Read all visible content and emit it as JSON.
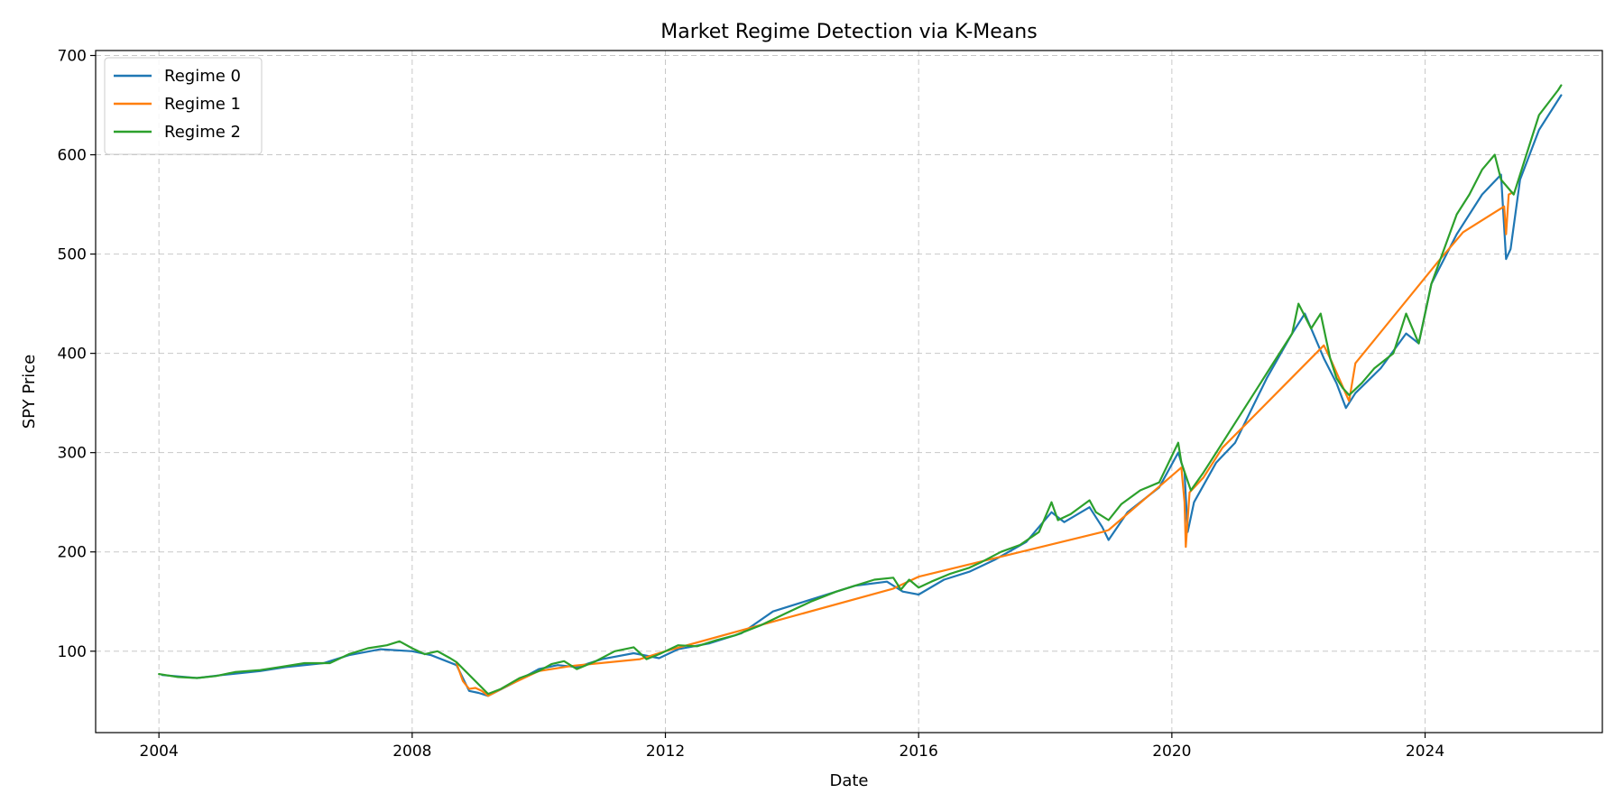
{
  "chart_data": {
    "type": "line",
    "title": "Market Regime Detection via K-Means",
    "xlabel": "Date",
    "ylabel": "SPY Price",
    "x_ticks": [
      "2004",
      "2008",
      "2012",
      "2016",
      "2020",
      "2024"
    ],
    "y_ticks": [
      100,
      200,
      300,
      400,
      500,
      600,
      700
    ],
    "xlim": [
      2003.0,
      2026.8
    ],
    "ylim": [
      18,
      705
    ],
    "grid": true,
    "grid_style": "dashed",
    "legend_position": "top-left",
    "series": [
      {
        "name": "Regime 0",
        "color": "#1f77b4",
        "points": [
          [
            2004.05,
            76
          ],
          [
            2004.6,
            73
          ],
          [
            2005.0,
            76
          ],
          [
            2005.6,
            80
          ],
          [
            2006.0,
            84
          ],
          [
            2006.6,
            88
          ],
          [
            2007.0,
            96
          ],
          [
            2007.5,
            102
          ],
          [
            2008.0,
            100
          ],
          [
            2008.3,
            96
          ],
          [
            2008.7,
            86
          ],
          [
            2008.9,
            60
          ],
          [
            2009.05,
            58
          ],
          [
            2009.2,
            55
          ],
          [
            2009.6,
            68
          ],
          [
            2010.0,
            82
          ],
          [
            2010.3,
            86
          ],
          [
            2010.6,
            84
          ],
          [
            2011.0,
            92
          ],
          [
            2011.5,
            98
          ],
          [
            2011.9,
            93
          ],
          [
            2012.2,
            102
          ],
          [
            2012.7,
            108
          ],
          [
            2013.2,
            118
          ],
          [
            2013.7,
            140
          ],
          [
            2014.2,
            150
          ],
          [
            2014.7,
            160
          ],
          [
            2015.0,
            166
          ],
          [
            2015.5,
            170
          ],
          [
            2015.75,
            160
          ],
          [
            2016.0,
            157
          ],
          [
            2016.4,
            172
          ],
          [
            2016.8,
            180
          ],
          [
            2017.2,
            192
          ],
          [
            2017.7,
            210
          ],
          [
            2018.1,
            240
          ],
          [
            2018.3,
            230
          ],
          [
            2018.7,
            245
          ],
          [
            2018.9,
            225
          ],
          [
            2019.0,
            212
          ],
          [
            2019.3,
            240
          ],
          [
            2019.8,
            265
          ],
          [
            2020.1,
            300
          ],
          [
            2020.2,
            280
          ],
          [
            2020.25,
            220
          ],
          [
            2020.35,
            250
          ],
          [
            2020.7,
            290
          ],
          [
            2021.0,
            310
          ],
          [
            2021.5,
            375
          ],
          [
            2021.9,
            420
          ],
          [
            2022.1,
            440
          ],
          [
            2022.4,
            395
          ],
          [
            2022.6,
            370
          ],
          [
            2022.75,
            345
          ],
          [
            2022.9,
            360
          ],
          [
            2023.3,
            385
          ],
          [
            2023.7,
            420
          ],
          [
            2023.9,
            410
          ],
          [
            2024.1,
            470
          ],
          [
            2024.5,
            520
          ],
          [
            2024.9,
            560
          ],
          [
            2025.2,
            580
          ],
          [
            2025.28,
            495
          ],
          [
            2025.35,
            505
          ],
          [
            2025.5,
            575
          ],
          [
            2025.8,
            625
          ],
          [
            2026.15,
            660
          ]
        ]
      },
      {
        "name": "Regime 1",
        "color": "#ff7f0e",
        "points": [
          [
            2008.7,
            88
          ],
          [
            2008.8,
            70
          ],
          [
            2008.9,
            62
          ],
          [
            2009.0,
            63
          ],
          [
            2009.1,
            60
          ],
          [
            2009.2,
            55
          ],
          [
            2009.5,
            65
          ],
          [
            2010.0,
            80
          ],
          [
            2010.5,
            85
          ],
          [
            2011.6,
            92
          ],
          [
            2012.0,
            100
          ],
          [
            2015.6,
            163
          ],
          [
            2016.0,
            175
          ],
          [
            2018.9,
            220
          ],
          [
            2019.0,
            222
          ],
          [
            2020.15,
            285
          ],
          [
            2020.2,
            250
          ],
          [
            2020.22,
            205
          ],
          [
            2020.28,
            260
          ],
          [
            2020.5,
            275
          ],
          [
            2020.8,
            305
          ],
          [
            2022.4,
            408
          ],
          [
            2022.5,
            395
          ],
          [
            2022.8,
            352
          ],
          [
            2022.9,
            390
          ],
          [
            2024.2,
            492
          ],
          [
            2024.6,
            522
          ],
          [
            2025.25,
            548
          ],
          [
            2025.28,
            520
          ],
          [
            2025.32,
            560
          ],
          [
            2025.38,
            562
          ]
        ]
      },
      {
        "name": "Regime 2",
        "color": "#2ca02c",
        "points": [
          [
            2004.0,
            77
          ],
          [
            2004.3,
            74
          ],
          [
            2004.6,
            73
          ],
          [
            2004.9,
            75
          ],
          [
            2005.2,
            79
          ],
          [
            2005.6,
            81
          ],
          [
            2005.9,
            84
          ],
          [
            2006.3,
            88
          ],
          [
            2006.7,
            88
          ],
          [
            2007.0,
            97
          ],
          [
            2007.3,
            103
          ],
          [
            2007.6,
            106
          ],
          [
            2007.8,
            110
          ],
          [
            2008.0,
            103
          ],
          [
            2008.2,
            97
          ],
          [
            2008.4,
            100
          ],
          [
            2008.6,
            93
          ],
          [
            2008.7,
            89
          ],
          [
            2009.2,
            57
          ],
          [
            2009.4,
            62
          ],
          [
            2009.7,
            73
          ],
          [
            2010.0,
            80
          ],
          [
            2010.2,
            87
          ],
          [
            2010.4,
            90
          ],
          [
            2010.6,
            82
          ],
          [
            2010.9,
            90
          ],
          [
            2011.2,
            100
          ],
          [
            2011.5,
            104
          ],
          [
            2011.7,
            92
          ],
          [
            2011.9,
            97
          ],
          [
            2012.2,
            106
          ],
          [
            2012.5,
            105
          ],
          [
            2012.8,
            111
          ],
          [
            2013.1,
            116
          ],
          [
            2013.5,
            126
          ],
          [
            2013.9,
            138
          ],
          [
            2014.3,
            150
          ],
          [
            2014.7,
            160
          ],
          [
            2015.0,
            166
          ],
          [
            2015.3,
            172
          ],
          [
            2015.6,
            174
          ],
          [
            2015.72,
            162
          ],
          [
            2015.85,
            172
          ],
          [
            2016.0,
            164
          ],
          [
            2016.2,
            170
          ],
          [
            2016.5,
            178
          ],
          [
            2016.8,
            184
          ],
          [
            2017.0,
            190
          ],
          [
            2017.3,
            200
          ],
          [
            2017.6,
            207
          ],
          [
            2017.9,
            220
          ],
          [
            2018.1,
            250
          ],
          [
            2018.2,
            232
          ],
          [
            2018.4,
            238
          ],
          [
            2018.7,
            252
          ],
          [
            2018.8,
            240
          ],
          [
            2019.0,
            232
          ],
          [
            2019.2,
            248
          ],
          [
            2019.5,
            262
          ],
          [
            2019.8,
            270
          ],
          [
            2020.1,
            310
          ],
          [
            2020.15,
            290
          ],
          [
            2020.3,
            262
          ],
          [
            2020.5,
            280
          ],
          [
            2020.7,
            300
          ],
          [
            2021.0,
            330
          ],
          [
            2021.3,
            360
          ],
          [
            2021.6,
            390
          ],
          [
            2021.9,
            420
          ],
          [
            2022.0,
            450
          ],
          [
            2022.2,
            425
          ],
          [
            2022.35,
            440
          ],
          [
            2022.5,
            395
          ],
          [
            2022.6,
            375
          ],
          [
            2022.7,
            365
          ],
          [
            2022.8,
            358
          ],
          [
            2023.0,
            370
          ],
          [
            2023.2,
            385
          ],
          [
            2023.5,
            400
          ],
          [
            2023.7,
            440
          ],
          [
            2023.9,
            410
          ],
          [
            2024.1,
            470
          ],
          [
            2024.3,
            505
          ],
          [
            2024.5,
            540
          ],
          [
            2024.7,
            560
          ],
          [
            2024.9,
            585
          ],
          [
            2025.1,
            600
          ],
          [
            2025.2,
            575
          ],
          [
            2025.4,
            560
          ],
          [
            2025.6,
            600
          ],
          [
            2025.8,
            640
          ],
          [
            2026.1,
            665
          ],
          [
            2026.15,
            670
          ]
        ]
      }
    ]
  }
}
